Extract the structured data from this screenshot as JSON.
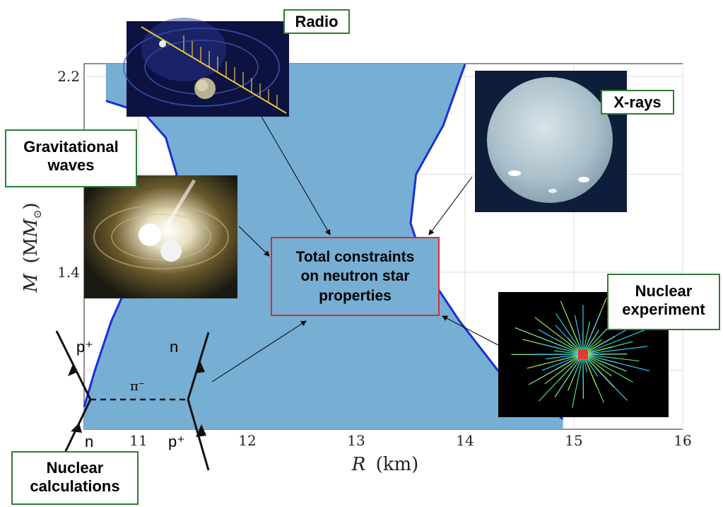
{
  "chart_data": {
    "type": "area",
    "xlabel_var": "R",
    "xlabel_unit": "(km)",
    "ylabel_var": "M",
    "ylabel_unit": "(M",
    "ylabel_sub": "⊙",
    "ylabel_close": ")",
    "xlim": [
      10.5,
      16
    ],
    "x_ticks": [
      "11",
      "12",
      "13",
      "14",
      "15",
      "16"
    ],
    "y_ticks": [
      "1.4",
      "2.2"
    ],
    "grid": true,
    "fill_color": "#77aed3",
    "boundary_color": "#1a2fd6",
    "region_left_boundary": [
      [
        10.5,
        0.85
      ],
      [
        10.6,
        1.0
      ],
      [
        10.75,
        1.2
      ],
      [
        10.95,
        1.4
      ],
      [
        11.2,
        1.6
      ],
      [
        11.35,
        1.8
      ],
      [
        11.25,
        1.95
      ],
      [
        11.05,
        2.05
      ],
      [
        10.7,
        2.1
      ]
    ],
    "region_right_boundary": [
      [
        14.9,
        0.8
      ],
      [
        14.6,
        0.9
      ],
      [
        14.3,
        1.0
      ],
      [
        13.95,
        1.2
      ],
      [
        13.65,
        1.4
      ],
      [
        13.5,
        1.6
      ],
      [
        13.55,
        1.8
      ],
      [
        13.8,
        2.0
      ],
      [
        14.0,
        2.25
      ]
    ]
  },
  "center_box": {
    "line1": "Total constraints",
    "line2": "on neutron star",
    "line3": "properties"
  },
  "tags": {
    "radio": "Radio",
    "xrays": "X-rays",
    "gw_line1": "Gravitational",
    "gw_line2": "waves",
    "nexp_line1": "Nuclear",
    "nexp_line2": "experiment",
    "ncalc_line1": "Nuclear",
    "ncalc_line2": "calculations"
  },
  "feynman": {
    "top_left": "p⁺",
    "top_right": "n",
    "middle": "π⁻",
    "bottom_left": "n",
    "bottom_right": "p⁺"
  },
  "colors": {
    "tag_border": "#2e7d32",
    "center_border": "#d32f2f"
  }
}
